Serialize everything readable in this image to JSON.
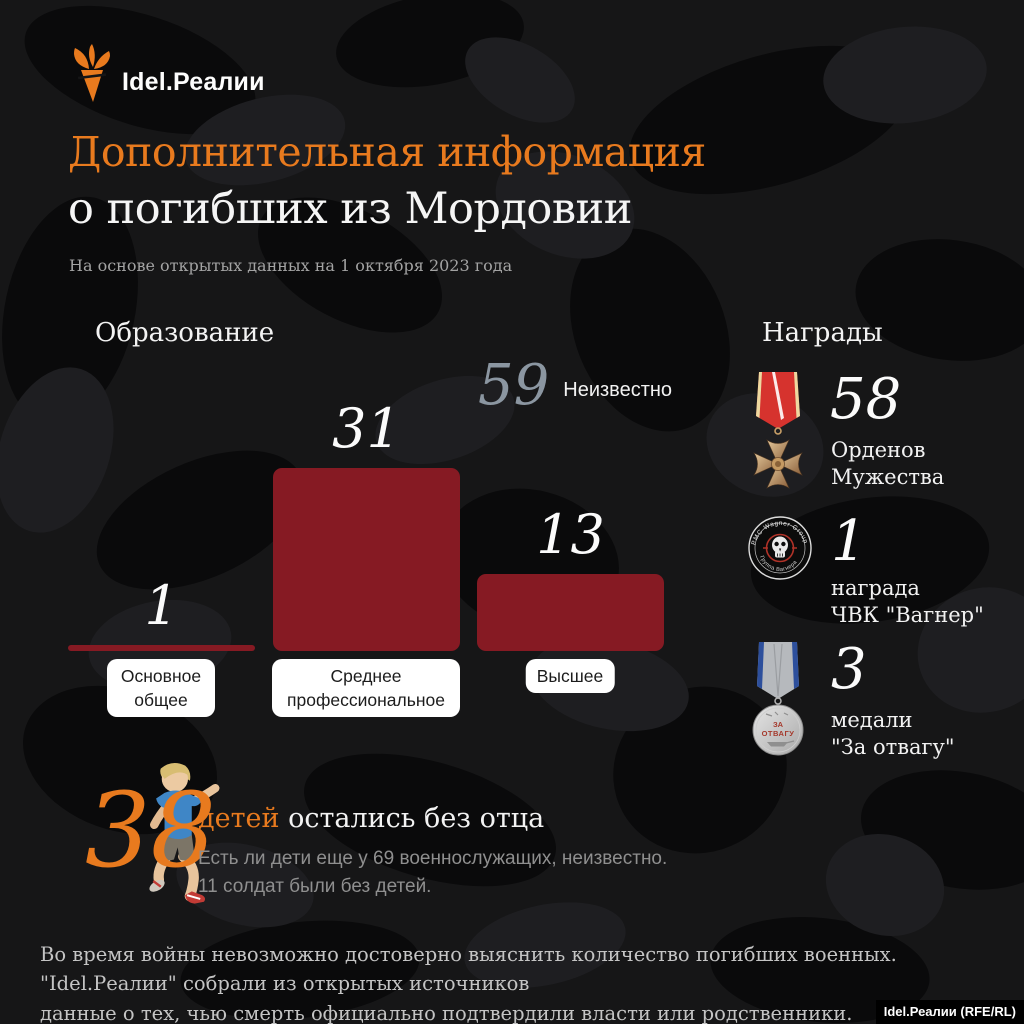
{
  "logo": {
    "brand": "Idel.Реалии"
  },
  "header": {
    "title_line1": "Дополнительная информация",
    "title_line2": "о погибших из Мордовии",
    "subtitle": "На основе открытых данных на 1 октября 2023 года"
  },
  "chart_data": {
    "type": "bar",
    "title": "Образование",
    "categories": [
      "Основное общее",
      "Среднее профессиональное",
      "Высшее"
    ],
    "values": [
      1,
      31,
      13
    ],
    "bar_color": "#861a23",
    "ylim": [
      0,
      31
    ],
    "grid": false,
    "legend": "none",
    "unknown": {
      "value": "59",
      "label": "Неизвестно"
    }
  },
  "awards": {
    "title": "Награды",
    "items": [
      {
        "icon": "order-of-courage-medal",
        "value": "58",
        "label": "Орденов\nМужества"
      },
      {
        "icon": "wagner-group-patch",
        "value": "1",
        "label": "награда\nЧВК \"Вагнер\""
      },
      {
        "icon": "za-otvagu-medal",
        "value": "3",
        "label": "медали\n\"За отвагу\""
      }
    ]
  },
  "children": {
    "value": "38",
    "highlight": "детей",
    "rest": " остались без отца",
    "note_line1": "Есть ли дети еще у 69 военнослужащих, неизвестно.",
    "note_line2": "11 солдат были без детей."
  },
  "footer": {
    "text": "Во время войны невозможно достоверно выяснить количество погибших военных. \"Idel.Реалии\" собрали из открытых источников\nданные о тех, чью смерть официально подтвердили власти или родственники.",
    "watermark": "Idel.Реалии (RFE/RL)"
  },
  "colors": {
    "accent_orange": "#e87a1e",
    "bar_red": "#861a23",
    "unknown_gray": "#8b96a1"
  }
}
